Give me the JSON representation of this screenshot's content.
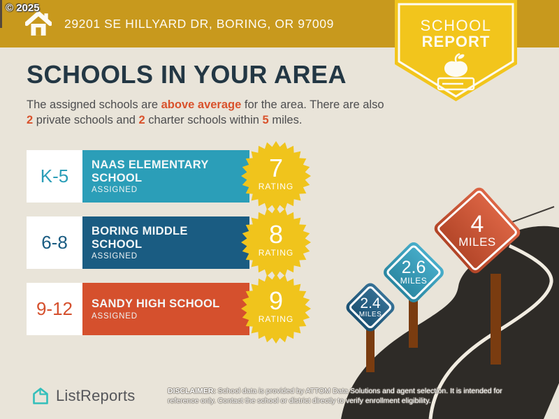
{
  "copyright": "© 2025",
  "topbar": {
    "address": "29201 SE HILLYARD DR, BORING, OR 97009"
  },
  "badge": {
    "line1": "SCHOOL",
    "line2": "REPORT",
    "icon": "apple-on-book-icon"
  },
  "heading": {
    "title": "SCHOOLS IN YOUR AREA"
  },
  "subtitle": {
    "p1": "The assigned schools are ",
    "h1": "above average",
    "p2": " for the area. There are also ",
    "h2": "2",
    "p3": " private schools and ",
    "h3": "2",
    "p4": " charter schools within ",
    "h4": "5",
    "p5": " miles."
  },
  "schools": [
    {
      "grades": "K-5",
      "name": "NAAS ELEMENTARY SCHOOL",
      "status": "ASSIGNED",
      "rating": "7",
      "rating_label": "RATING",
      "color": "#2B9EB8"
    },
    {
      "grades": "6-8",
      "name": "BORING MIDDLE SCHOOL",
      "status": "ASSIGNED",
      "rating": "8",
      "rating_label": "RATING",
      "color": "#1A5C82"
    },
    {
      "grades": "9-12",
      "name": "SANDY HIGH SCHOOL",
      "status": "ASSIGNED",
      "rating": "9",
      "rating_label": "RATING",
      "color": "#D5502D"
    }
  ],
  "distance_signs": [
    {
      "value": "2.4",
      "unit": "MILES",
      "color": "#20618A"
    },
    {
      "value": "2.6",
      "unit": "MILES",
      "color": "#33A4C4"
    },
    {
      "value": "4",
      "unit": "MILES",
      "color": "#D95430"
    }
  ],
  "footer": {
    "brand": "ListReports",
    "disclaimer_label": "DISCLAIMER:",
    "disclaimer_text": " School data is provided by ATTOM Data Solutions and agent selection. It is intended for reference only. Contact the school or district directly to verify enrollment eligibility."
  },
  "colors": {
    "topbar_gold": "#C8991D",
    "badge_yellow": "#F2C51C",
    "starburst_yellow": "#F0C41C",
    "background": "#E9E4D9",
    "title_navy": "#233744",
    "accent_orange": "#D9522C",
    "road": "#2E2B27",
    "road_line": "#F1ECE1",
    "post_brown": "#7A3C10",
    "brand_teal": "#33BFBB"
  }
}
